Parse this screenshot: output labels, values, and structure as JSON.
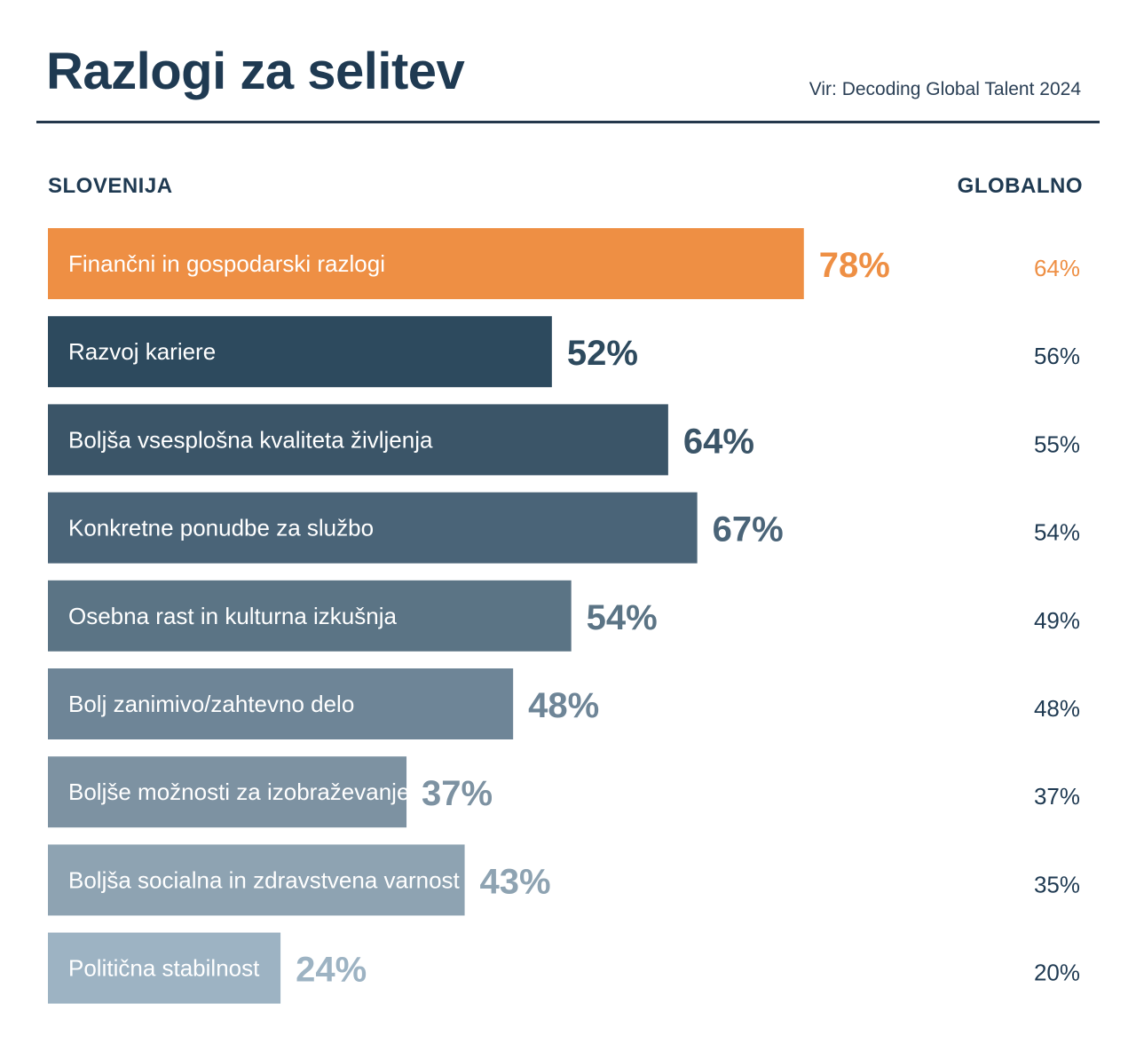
{
  "header": {
    "title": "Razlogi za selitev",
    "source": "Vir: Decoding Global Talent 2024"
  },
  "columns": {
    "left": "SLOVENIJA",
    "right": "GLOBALNO"
  },
  "chart_data": {
    "type": "bar",
    "orientation": "horizontal",
    "title": "Razlogi za selitev",
    "categories": [
      "Finančni in gospodarski razlogi",
      "Razvoj kariere",
      "Boljša vsesplošna kvaliteta življenja",
      "Konkretne ponudbe za službo",
      "Osebna rast in kulturna izkušnja",
      "Bolj zanimivo/zahtevno delo",
      "Boljše možnosti za izobraževanje/usposabljanje",
      "Boljša socialna in zdravstvena varnost",
      "Politična stabilnost"
    ],
    "series": [
      {
        "name": "SLOVENIJA",
        "values": [
          78,
          52,
          64,
          67,
          54,
          48,
          37,
          43,
          24
        ],
        "value_labels": [
          "78%",
          "52%",
          "64%",
          "67%",
          "54%",
          "48%",
          "37%",
          "43%",
          "24%"
        ]
      },
      {
        "name": "GLOBALNO",
        "values": [
          64,
          56,
          55,
          54,
          49,
          48,
          37,
          35,
          20
        ],
        "value_labels": [
          "64%",
          "56%",
          "55%",
          "54%",
          "49%",
          "48%",
          "37%",
          "35%",
          "20%"
        ]
      }
    ],
    "bar_colors": [
      "#ee8f44",
      "#2d4a5e",
      "#3b5568",
      "#4a6478",
      "#5b7485",
      "#6e8597",
      "#7d92a2",
      "#8ea3b2",
      "#9db3c3"
    ],
    "value_colors": [
      "#ee8f44",
      "#2d4a5e",
      "#3b5568",
      "#4a6478",
      "#5b7485",
      "#6e8597",
      "#7d92a2",
      "#8ea3b2",
      "#9db3c3"
    ],
    "global_colors": [
      "#ee8f44",
      "#1f3a52",
      "#1f3a52",
      "#1f3a52",
      "#1f3a52",
      "#1f3a52",
      "#1f3a52",
      "#1f3a52",
      "#1f3a52"
    ],
    "xlim": [
      0,
      100
    ],
    "grid": false
  }
}
